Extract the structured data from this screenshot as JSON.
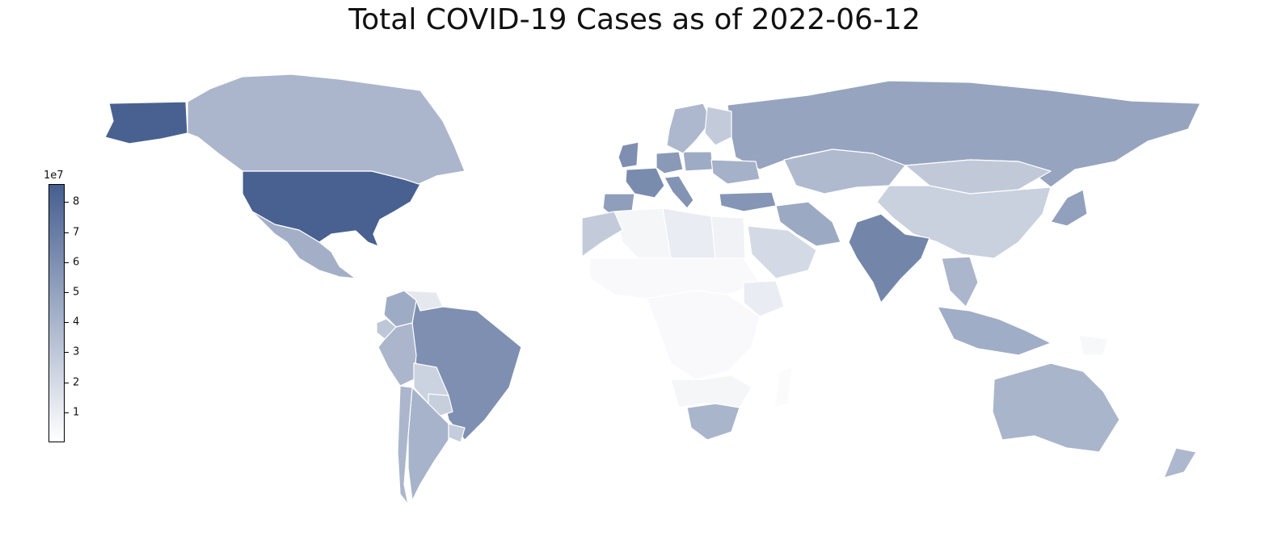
{
  "title": "Total COVID-19 Cases as of 2022-06-12",
  "colorbar": {
    "exponent_label": "1e7",
    "min": 0,
    "max": 8.6,
    "ticks": [
      "1",
      "2",
      "3",
      "4",
      "5",
      "6",
      "7",
      "8"
    ],
    "color_low": "#ffffff",
    "color_high": "#465f8f"
  },
  "map_data": {
    "type": "choropleth",
    "units": "1e7 cases",
    "countries": [
      {
        "name": "United States",
        "value": 8.5
      },
      {
        "name": "Canada",
        "value": 3.9
      },
      {
        "name": "Mexico",
        "value": 4.3
      },
      {
        "name": "Greenland",
        "value": 0.0
      },
      {
        "name": "Brazil",
        "value": 6.0
      },
      {
        "name": "Argentina",
        "value": 4.1
      },
      {
        "name": "Chile",
        "value": 3.9
      },
      {
        "name": "Peru",
        "value": 3.9
      },
      {
        "name": "Colombia",
        "value": 4.5
      },
      {
        "name": "Venezuela",
        "value": 1.2
      },
      {
        "name": "Bolivia",
        "value": 2.4
      },
      {
        "name": "Paraguay",
        "value": 2.6
      },
      {
        "name": "Uruguay",
        "value": 2.7
      },
      {
        "name": "Ecuador",
        "value": 3.0
      },
      {
        "name": "Russia",
        "value": 4.9
      },
      {
        "name": "China",
        "value": 2.5
      },
      {
        "name": "India",
        "value": 6.5
      },
      {
        "name": "Kazakhstan",
        "value": 3.7
      },
      {
        "name": "Mongolia",
        "value": 2.9
      },
      {
        "name": "Iran",
        "value": 4.6
      },
      {
        "name": "Turkey",
        "value": 5.7
      },
      {
        "name": "Saudi Arabia",
        "value": 2.0
      },
      {
        "name": "France",
        "value": 6.2
      },
      {
        "name": "Germany",
        "value": 5.5
      },
      {
        "name": "Spain",
        "value": 5.2
      },
      {
        "name": "United Kingdom",
        "value": 6.0
      },
      {
        "name": "Italy",
        "value": 5.8
      },
      {
        "name": "Poland",
        "value": 4.5
      },
      {
        "name": "Ukraine",
        "value": 4.2
      },
      {
        "name": "Scandinavia",
        "value": 3.8
      },
      {
        "name": "Finland",
        "value": 2.8
      },
      {
        "name": "Algeria",
        "value": 0.5
      },
      {
        "name": "Libya",
        "value": 1.0
      },
      {
        "name": "Egypt",
        "value": 0.7
      },
      {
        "name": "Morocco",
        "value": 2.8
      },
      {
        "name": "Sahel",
        "value": 0.3
      },
      {
        "name": "Ethiopia",
        "value": 1.0
      },
      {
        "name": "Central Africa",
        "value": 0.3
      },
      {
        "name": "Southern Africa",
        "value": 0.5
      },
      {
        "name": "South Africa",
        "value": 4.0
      },
      {
        "name": "Southeast Asia",
        "value": 3.9
      },
      {
        "name": "Indonesia",
        "value": 4.4
      },
      {
        "name": "Japan",
        "value": 5.1
      },
      {
        "name": "Australia",
        "value": 4.0
      },
      {
        "name": "New Zealand",
        "value": 3.8
      },
      {
        "name": "Papua New Guinea",
        "value": 0.4
      },
      {
        "name": "Madagascar",
        "value": 0.2
      }
    ]
  }
}
